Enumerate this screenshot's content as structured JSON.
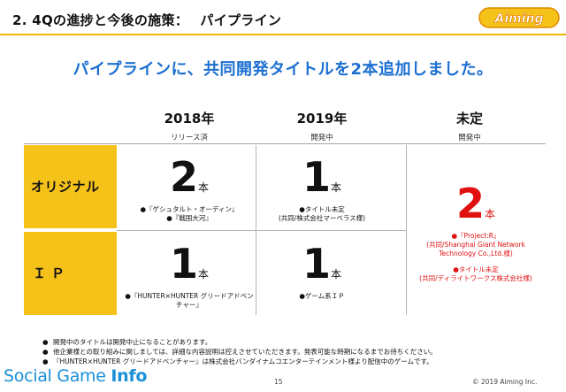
{
  "header": {
    "title": "2. 4Qの進捗と今後の施策：　 パイプライン",
    "logo_text": "Aiming",
    "accent_color": "#f2b705"
  },
  "headline": "パイプラインに、共同開発タイトルを2本追加しました。",
  "columns": [
    {
      "year": "2018年",
      "status": "リリース済"
    },
    {
      "year": "2019年",
      "status": "開発中"
    },
    {
      "year": "未定",
      "status": "開発中"
    }
  ],
  "rows": [
    {
      "label": "オリジナル"
    },
    {
      "label": "ＩＰ"
    }
  ],
  "unit": "本",
  "cells": {
    "original_2018": {
      "count": "2",
      "notes": [
        "●『ゲシュタルト・オーディン』",
        "●『戦国大河』"
      ]
    },
    "original_2019": {
      "count": "1",
      "notes": [
        "●タイトル未定",
        "(共同/株式会社マーベラス様)"
      ]
    },
    "ip_2018": {
      "count": "1",
      "notes": [
        "●『HUNTER×HUNTER グリードアドベン",
        "チャー』"
      ]
    },
    "ip_2019": {
      "count": "1",
      "notes": [
        "●ゲーム系ＩＰ"
      ]
    },
    "undecided": {
      "count": "2",
      "notes_a": [
        "●『Project:R』",
        "(共同/Shanghai Giant Network",
        "Technology Co.,Ltd.様)"
      ],
      "notes_b": [
        "●タイトル未定",
        "(共同/ディライトワークス株式会社様)"
      ],
      "color": "#e01010"
    }
  },
  "footnotes": [
    "開発中のタイトルは開発中止になることがあります。",
    "他企業様との取り組みに関しましては、詳細な内容説明は控えさせていただきます。発表可能な時期になるまでお待ちください。",
    "『HUNTER×HUNTER グリードアドベンチャー』は株式会社バンダイナムコエンターテインメント様より配信中のゲームです。"
  ],
  "footer": {
    "brand_light": "Social Game ",
    "brand_bold": "Info",
    "page_number": "15",
    "copyright": "© 2019 Aiming Inc."
  }
}
